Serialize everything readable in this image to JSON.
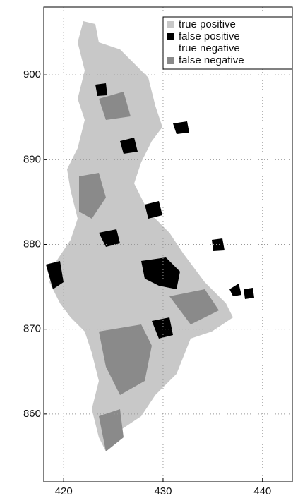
{
  "chart_data": {
    "type": "map",
    "xlim": [
      418,
      443
    ],
    "ylim": [
      852,
      908
    ],
    "xticks": [
      420,
      430,
      440
    ],
    "yticks": [
      860,
      870,
      880,
      890,
      900
    ],
    "grid": true,
    "legend": "top-right",
    "series": [
      {
        "name": "true positive",
        "color": "#c8c8c8"
      },
      {
        "name": "false positive",
        "color": "#000000"
      },
      {
        "name": "true negative",
        "color": "#ffffff"
      },
      {
        "name": "false negative",
        "color": "#8a8a8a"
      }
    ]
  }
}
